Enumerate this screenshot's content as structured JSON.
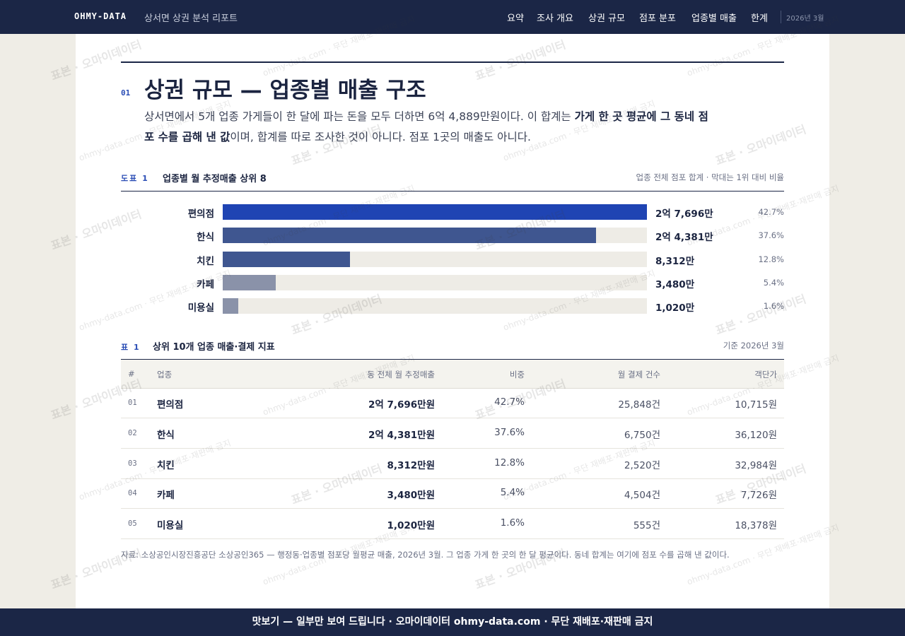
{
  "header": {
    "brand": "OHMY-DATA",
    "report_title": "상서면 상권 분석 리포트",
    "nav": [
      "요약",
      "조사 개요",
      "상권 규모",
      "점포 분포",
      "업종별 매출",
      "한계"
    ],
    "date": "2026년 3월"
  },
  "section": {
    "number": "01",
    "title": "상권 규모 — 업종별 매출 구조",
    "lede": [
      {
        "text": "상서면에서 5개 업종 가게들이 한 달에 파는 돈을 모두 더하면 6억 4,889만원이다. 이 합계는 ",
        "bold": false
      },
      {
        "text": "가게 한 곳 평균에 그 동네 점포 수를 곱해 낸 값",
        "bold": true
      },
      {
        "text": "이며, 합계를 따로 조사한 것이 아니다. 점포 1곳의 매출도 아니다.",
        "bold": false
      }
    ]
  },
  "chart_data": {
    "type": "bar",
    "orientation": "horizontal",
    "label": "도표 1",
    "title": "업종별 월 추정매출 상위 8",
    "note": "업종 전체 점포 합계 · 막대는 1위 대비 비율",
    "categories": [
      "편의점",
      "한식",
      "치킨",
      "카페",
      "미용실"
    ],
    "values": [
      27696,
      24381,
      8312,
      3480,
      1020
    ],
    "value_labels": [
      "2억 7,696만",
      "2억 4,381만",
      "8,312만",
      "3,480만",
      "1,020만"
    ],
    "share_labels": [
      "42.7%",
      "37.6%",
      "12.8%",
      "5.4%",
      "1.6%"
    ],
    "colors": [
      "#1f44b3",
      "#3f5690",
      "#3f5690",
      "#8a92a9",
      "#8a92a9"
    ]
  },
  "table": {
    "label": "표 1",
    "title": "상위 10개 업종 매출·결제 지표",
    "note": "기준 2026년 3월",
    "columns": [
      "#",
      "업종",
      "동 전체 월 추정매출",
      "비중",
      "월 결제 건수",
      "객단가"
    ],
    "rows": [
      [
        "01",
        "편의점",
        "2억 7,696만원",
        "42.7%",
        "25,848건",
        "10,715원"
      ],
      [
        "02",
        "한식",
        "2억 4,381만원",
        "37.6%",
        "6,750건",
        "36,120원"
      ],
      [
        "03",
        "치킨",
        "8,312만원",
        "12.8%",
        "2,520건",
        "32,984원"
      ],
      [
        "04",
        "카페",
        "3,480만원",
        "5.4%",
        "4,504건",
        "7,726원"
      ],
      [
        "05",
        "미용실",
        "1,020만원",
        "1.6%",
        "555건",
        "18,378원"
      ]
    ]
  },
  "source": "자료: 소상공인시장진흥공단 소상공인365 — 행정동·업종별 점포당 월평균 매출, 2026년 3월. 그 업종 가게 한 곳의 한 달 평균이다. 동네 합계는 여기에 점포 수를 곱해 낸 값이다.",
  "footer": "맛보기 — 일부만 보여 드립니다 · 오마이데이터 ohmy-data.com · 무단 재배포·재판매 금지",
  "watermark": [
    "표본 · 오마이데이터",
    "ohmy-data.com · 무단 재배포·재판매 금지"
  ]
}
